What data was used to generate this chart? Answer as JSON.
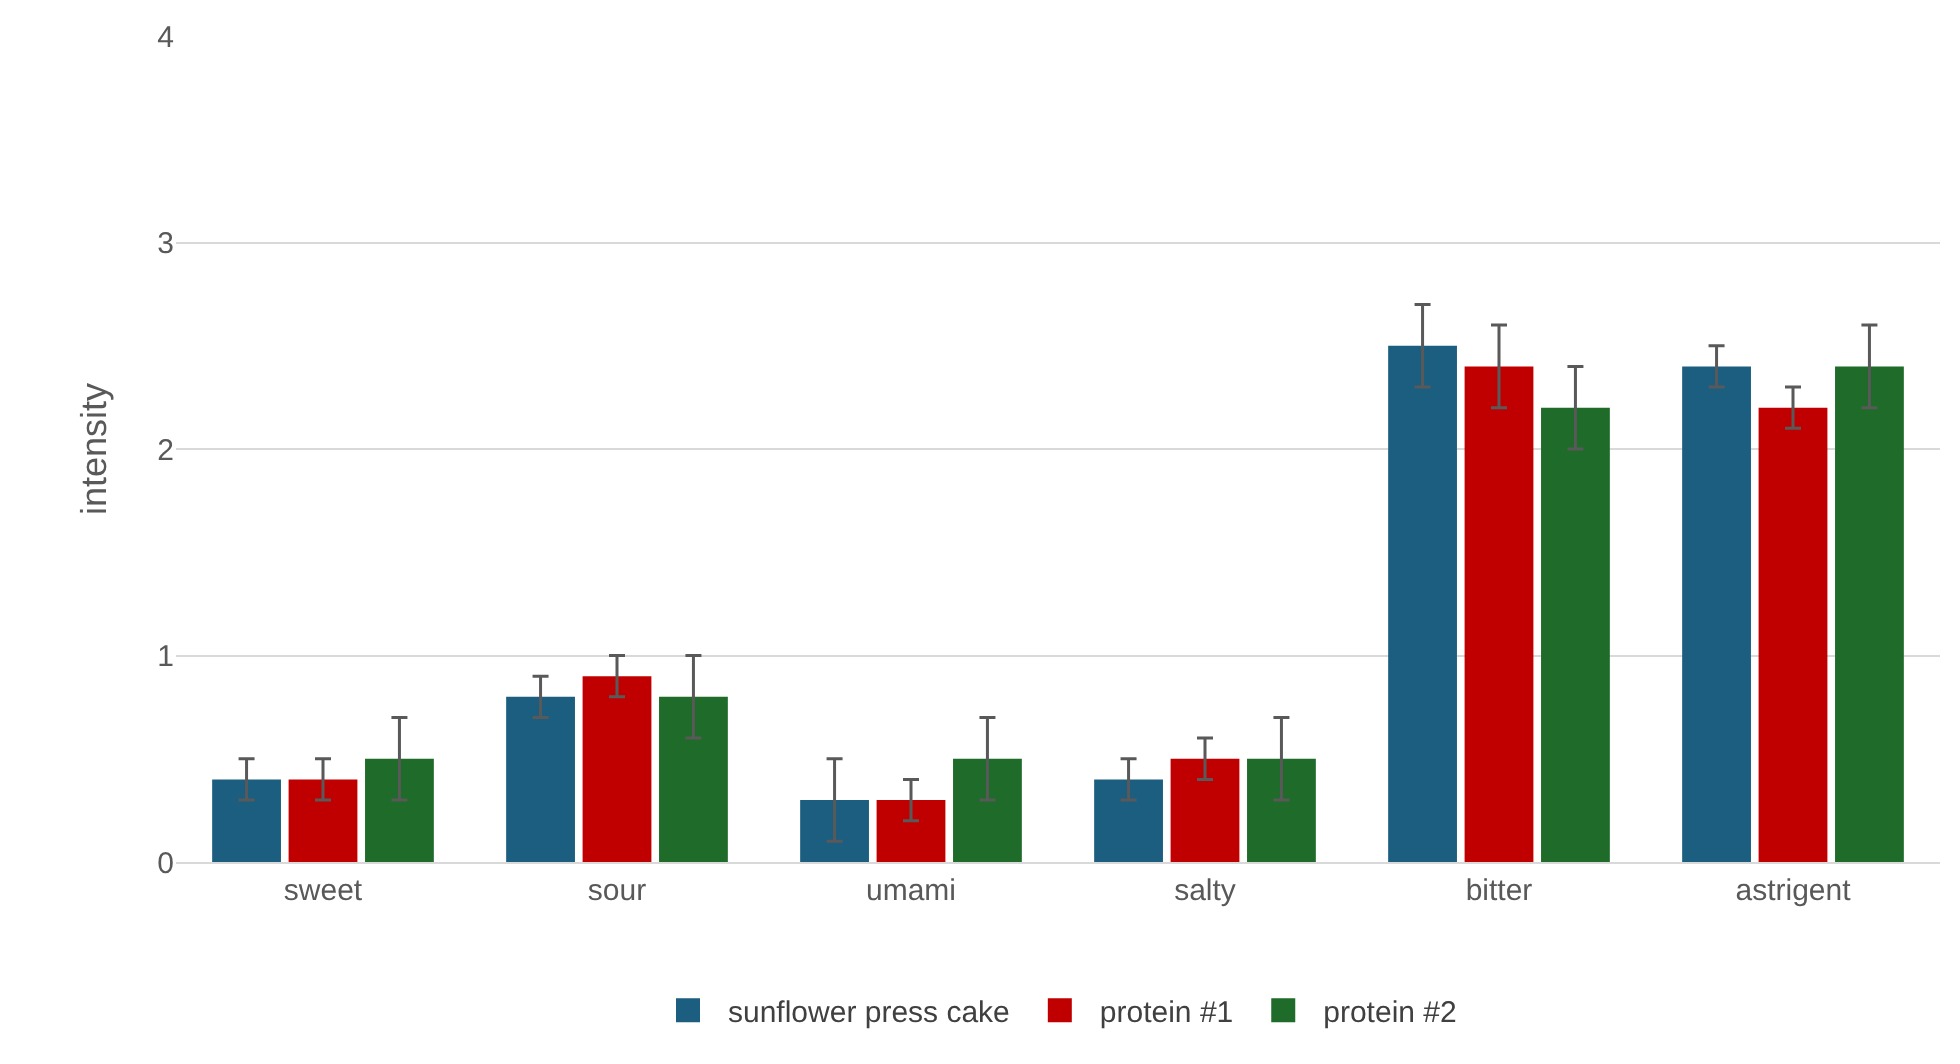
{
  "chart_data": {
    "type": "bar",
    "ylabel": "intensity",
    "categories": [
      "sweet",
      "sour",
      "umami",
      "salty",
      "bitter",
      "astrigent"
    ],
    "series": [
      {
        "name": "sunflower press cake",
        "color": "#1b5e80",
        "values": [
          0.4,
          0.8,
          0.3,
          0.4,
          2.5,
          2.4
        ],
        "errors": [
          0.1,
          0.1,
          0.2,
          0.1,
          0.2,
          0.1
        ]
      },
      {
        "name": "protein #1",
        "color": "#c00000",
        "values": [
          0.4,
          0.9,
          0.3,
          0.5,
          2.4,
          2.2
        ],
        "errors": [
          0.1,
          0.1,
          0.1,
          0.1,
          0.2,
          0.1
        ]
      },
      {
        "name": "protein #2",
        "color": "#1e6b2a",
        "values": [
          0.5,
          0.8,
          0.5,
          0.5,
          2.2,
          2.4
        ],
        "errors": [
          0.2,
          0.2,
          0.2,
          0.2,
          0.2,
          0.2
        ]
      }
    ],
    "ylim": [
      0,
      4
    ],
    "yticks": [
      0,
      1,
      2,
      3,
      4
    ],
    "grid": "y",
    "legend": "bottom"
  }
}
